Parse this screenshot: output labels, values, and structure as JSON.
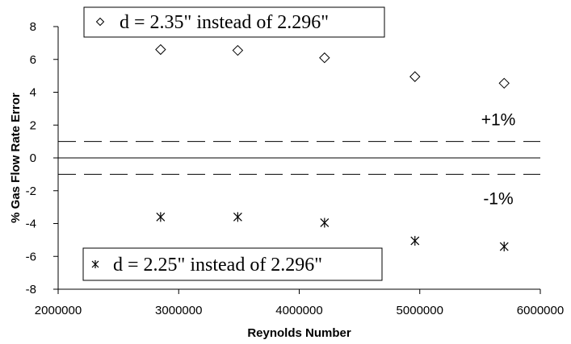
{
  "chart_data": {
    "type": "scatter",
    "title": "",
    "xlabel": "Reynolds Number",
    "ylabel": "% Gas Flow Rate Error",
    "xlim": [
      2000000,
      6000000
    ],
    "ylim": [
      -8,
      8
    ],
    "x_ticks": [
      2000000,
      3000000,
      4000000,
      5000000,
      6000000
    ],
    "y_ticks": [
      -8,
      -6,
      -4,
      -2,
      0,
      2,
      4,
      6,
      8
    ],
    "x_tick_labels": [
      "2000000",
      "3000000",
      "4000000",
      "5000000",
      "6000000"
    ],
    "y_tick_labels": [
      "-8",
      "-6",
      "-4",
      "-2",
      "0",
      "2",
      "4",
      "6",
      "8"
    ],
    "grid": false,
    "series": [
      {
        "name": "d = 2.35\" instead of 2.296\"",
        "marker": "diamond",
        "legend_position": "top-left",
        "x": [
          2850000,
          3490000,
          4210000,
          4960000,
          5700000
        ],
        "y": [
          6.6,
          6.55,
          6.1,
          4.95,
          4.55
        ]
      },
      {
        "name": "d = 2.25\" instead of 2.296\"",
        "marker": "asterisk",
        "legend_position": "bottom-left",
        "x": [
          2850000,
          3490000,
          4210000,
          4960000,
          5700000
        ],
        "y": [
          -3.6,
          -3.6,
          -3.95,
          -5.05,
          -5.4
        ]
      }
    ],
    "reference_lines": [
      {
        "y": 1,
        "style": "dashed",
        "label": "+1%"
      },
      {
        "y": 0,
        "style": "solid",
        "label": ""
      },
      {
        "y": -1,
        "style": "dashed",
        "label": "-1%"
      }
    ]
  }
}
